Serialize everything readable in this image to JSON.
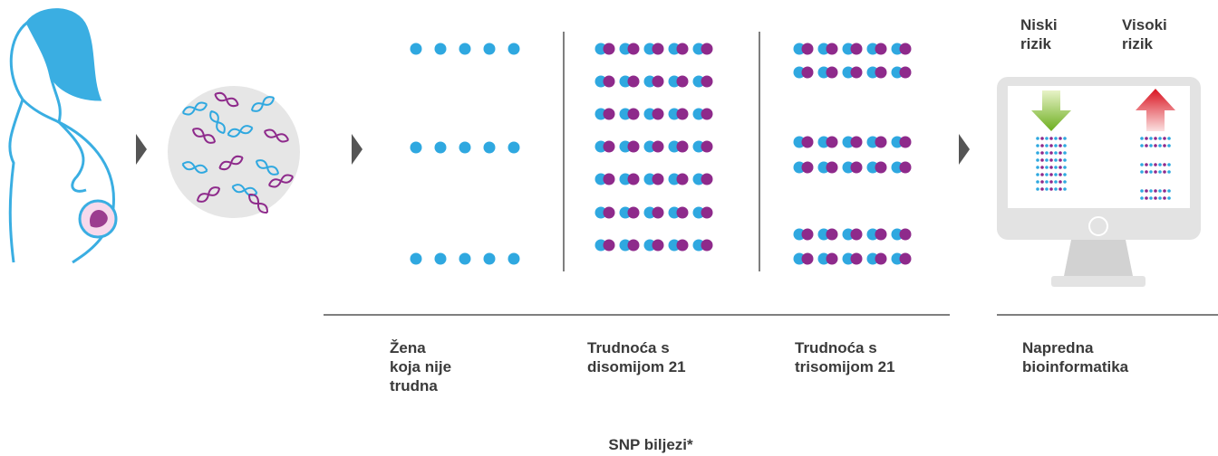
{
  "risk_labels": [
    [
      "Niski",
      "rizik"
    ],
    [
      "Visoki",
      "rizik"
    ]
  ],
  "columns": [
    {
      "label": [
        "Žena",
        "koja nije",
        "trudna"
      ]
    },
    {
      "label": [
        "Trudnoća s",
        "disomijom 21"
      ]
    },
    {
      "label": [
        "Trudnoća s",
        "trisomijom 21"
      ]
    },
    {
      "label": [
        "Napredna",
        "bioinformatika"
      ]
    }
  ],
  "footnote": "SNP biljezi*"
}
